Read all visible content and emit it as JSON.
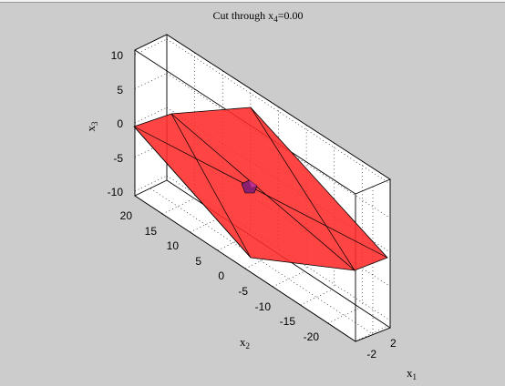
{
  "window": {
    "title": "Cut through x4=0.00"
  },
  "chart_data": {
    "type": "3d-polytope",
    "title": {
      "prefix": "Cut through x",
      "subscript": "4",
      "suffix": "=0.00"
    },
    "axes": {
      "x1": {
        "name": "x",
        "sub": "1",
        "ticks": [
          -2,
          2
        ],
        "tick_labels": [
          "-2",
          "2"
        ]
      },
      "x2": {
        "name": "x",
        "sub": "2",
        "ticks": [
          20,
          15,
          10,
          5,
          0,
          -5,
          -10,
          -15,
          -20
        ],
        "tick_labels": [
          "20",
          "15",
          "10",
          "5",
          "0",
          "-5",
          "-10",
          "-15",
          "-20"
        ]
      },
      "x3": {
        "name": "x",
        "sub": "3",
        "ticks": [
          10,
          5,
          0,
          -5,
          -10
        ],
        "tick_labels": [
          "10",
          "5",
          "0",
          "-5",
          "-10"
        ]
      }
    },
    "grid": true,
    "box": true,
    "series": [
      {
        "name": "",
        "color": "#ff2a2a",
        "edge_color": "#000000",
        "role": "outer polytope",
        "vertices_x2x3": [
          [
            24,
            0
          ],
          [
            10,
            3
          ],
          [
            -3,
            4
          ],
          [
            -5,
            -8
          ],
          [
            -24,
            -12
          ],
          [
            -24,
            -10
          ]
        ]
      },
      {
        "name": "",
        "color": "#8b2070",
        "role": "inner polytope",
        "center_x2x3": [
          -1,
          -4
        ]
      }
    ]
  },
  "colors": {
    "background": "#cccccc",
    "polytope_fill": "#ff2a2a",
    "inner_fill": "#8b2070"
  }
}
